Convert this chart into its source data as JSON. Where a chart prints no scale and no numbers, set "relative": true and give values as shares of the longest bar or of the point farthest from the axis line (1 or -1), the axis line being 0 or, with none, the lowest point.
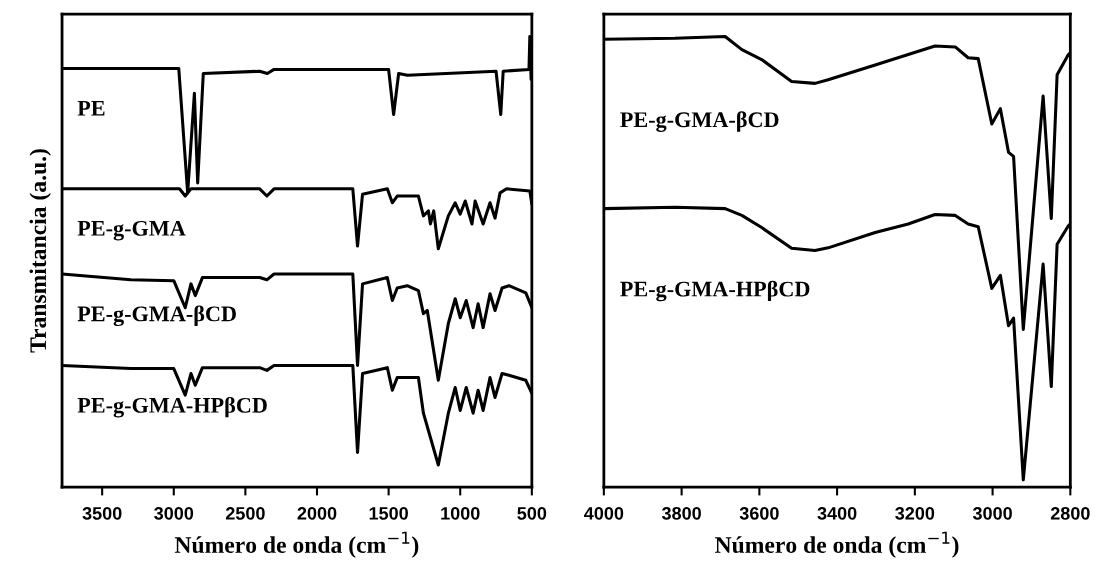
{
  "chart_data": [
    {
      "type": "line",
      "relative": true,
      "ylabel": "Transmitancia (a.u.)",
      "xlabel": "Número de onda (cm$^{−1}$)",
      "xlim": [
        3780,
        500
      ],
      "xticks": [
        3500,
        3000,
        2500,
        2000,
        1500,
        1000,
        500
      ],
      "tick_labels": "x",
      "grid": false,
      "legend": false,
      "marker": "none",
      "line_style": "solid",
      "series": [
        {
          "name": "PE",
          "color": "#000000",
          "x": [
            3780,
            2965,
            2903,
            2856,
            2833,
            2794,
            2400,
            2347,
            2300,
            1500,
            1465,
            1430,
            1368,
            750,
            717,
            700,
            520,
            514,
            505,
            500
          ],
          "values": [
            0.929,
            0.929,
            0.653,
            0.874,
            0.675,
            0.918,
            0.923,
            0.918,
            0.927,
            0.927,
            0.827,
            0.918,
            0.914,
            0.923,
            0.827,
            0.923,
            0.927,
            1.0,
            0.905,
            0.92
          ]
        },
        {
          "name": "PE-g-GMA",
          "color": "#000000",
          "x": [
            3780,
            2960,
            2920,
            2880,
            2400,
            2350,
            2300,
            1750,
            1717,
            1682,
            1509,
            1474,
            1440,
            1370,
            1292,
            1257,
            1222,
            1208,
            1185,
            1153,
            1083,
            1035,
            1000,
            965,
            918,
            896,
            840,
            792,
            757,
            722,
            676,
            514,
            500
          ],
          "values": [
            0.662,
            0.662,
            0.646,
            0.662,
            0.662,
            0.646,
            0.662,
            0.662,
            0.535,
            0.65,
            0.662,
            0.631,
            0.646,
            0.646,
            0.646,
            0.602,
            0.613,
            0.584,
            0.613,
            0.529,
            0.602,
            0.631,
            0.606,
            0.635,
            0.584,
            0.635,
            0.584,
            0.631,
            0.597,
            0.653,
            0.662,
            0.657,
            0.628
          ]
        },
        {
          "name": "PE-g-GMA-βCD",
          "color": "#000000",
          "x": [
            3780,
            3300,
            3000,
            2920,
            2880,
            2850,
            2800,
            2400,
            2350,
            2300,
            1750,
            1717,
            1682,
            1509,
            1474,
            1440,
            1370,
            1292,
            1257,
            1230,
            1153,
            1083,
            1035,
            1000,
            958,
            910,
            875,
            840,
            792,
            757,
            708,
            660,
            542,
            500
          ],
          "values": [
            0.473,
            0.46,
            0.458,
            0.398,
            0.451,
            0.425,
            0.465,
            0.465,
            0.46,
            0.473,
            0.473,
            0.27,
            0.451,
            0.465,
            0.414,
            0.442,
            0.447,
            0.436,
            0.385,
            0.392,
            0.237,
            0.363,
            0.418,
            0.376,
            0.414,
            0.354,
            0.407,
            0.354,
            0.429,
            0.392,
            0.442,
            0.447,
            0.431,
            0.398
          ]
        },
        {
          "name": "PE-g-GMA-HPβCD",
          "color": "#000000",
          "x": [
            3780,
            3300,
            3000,
            2920,
            2880,
            2850,
            2800,
            2400,
            2350,
            2300,
            1750,
            1717,
            1682,
            1509,
            1474,
            1440,
            1370,
            1292,
            1257,
            1153,
            1083,
            1035,
            1000,
            958,
            910,
            875,
            840,
            792,
            757,
            708,
            660,
            542,
            500
          ],
          "values": [
            0.27,
            0.263,
            0.263,
            0.204,
            0.252,
            0.226,
            0.265,
            0.265,
            0.259,
            0.27,
            0.27,
            0.077,
            0.252,
            0.265,
            0.215,
            0.243,
            0.243,
            0.243,
            0.164,
            0.049,
            0.164,
            0.221,
            0.17,
            0.221,
            0.164,
            0.215,
            0.17,
            0.243,
            0.199,
            0.252,
            0.248,
            0.237,
            0.208
          ]
        }
      ]
    },
    {
      "type": "line",
      "relative": true,
      "xlabel": "Número de onda (cm$^{−1}$)",
      "xlim": [
        4000,
        2800
      ],
      "xticks": [
        4000,
        3800,
        3600,
        3400,
        3200,
        3000,
        2800
      ],
      "tick_labels": "x",
      "grid": false,
      "legend": false,
      "marker": "none",
      "line_style": "solid",
      "series": [
        {
          "name": "PE-g-GMA-βCD",
          "color": "#000000",
          "x": [
            4000,
            3817,
            3688,
            3645,
            3594,
            3517,
            3457,
            3423,
            3302,
            3217,
            3148,
            3096,
            3063,
            3037,
            3002,
            2980,
            2959,
            2946,
            2921,
            2870,
            2849,
            2834,
            2805,
            2800
          ],
          "values": [
            0.994,
            0.996,
            1.0,
            0.971,
            0.949,
            0.9,
            0.896,
            0.904,
            0.937,
            0.96,
            0.979,
            0.977,
            0.953,
            0.951,
            0.806,
            0.84,
            0.743,
            0.734,
            0.35,
            0.868,
            0.596,
            0.915,
            0.96,
            0.964
          ]
        },
        {
          "name": "PE-g-GMA-HPβCD",
          "color": "#000000",
          "x": [
            4000,
            3817,
            3688,
            3645,
            3594,
            3517,
            3457,
            3423,
            3302,
            3217,
            3148,
            3096,
            3063,
            3037,
            3002,
            2980,
            2959,
            2946,
            2921,
            2870,
            2849,
            2834,
            2805,
            2800
          ],
          "values": [
            0.618,
            0.621,
            0.618,
            0.603,
            0.576,
            0.53,
            0.525,
            0.531,
            0.565,
            0.584,
            0.605,
            0.603,
            0.584,
            0.578,
            0.441,
            0.47,
            0.358,
            0.375,
            0.016,
            0.495,
            0.223,
            0.539,
            0.58,
            0.584
          ]
        }
      ]
    }
  ]
}
